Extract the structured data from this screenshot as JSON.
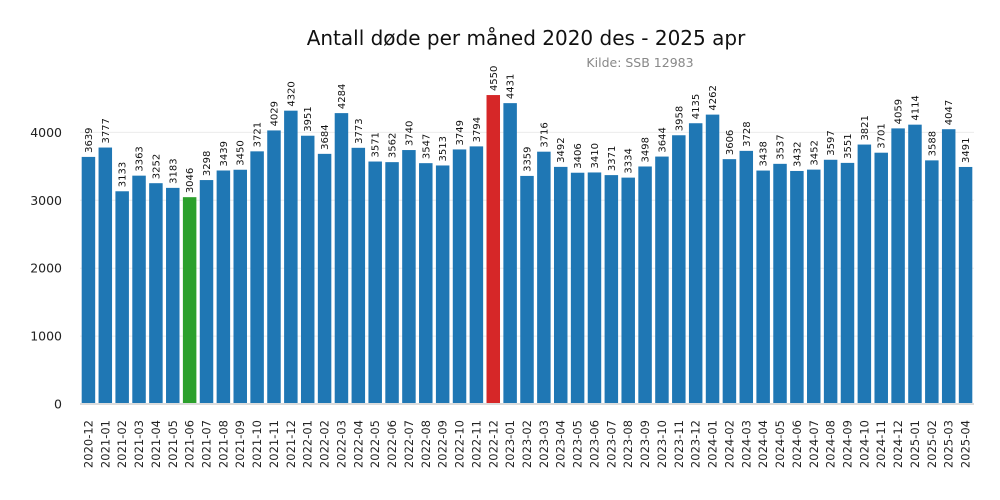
{
  "chart_data": {
    "type": "bar",
    "title": "Antall døde per måned 2020 des - 2025 apr",
    "subtitle": "Kilde: SSB 12983",
    "xlabel": "",
    "ylabel": "",
    "ylim": [
      0,
      4900
    ],
    "yticks": [
      0,
      1000,
      2000,
      3000,
      4000
    ],
    "grid": "horizontal",
    "default_color": "#1f77b4",
    "highlight": {
      "2021-06": "#2ca02c",
      "2022-12": "#d62728"
    },
    "categories": [
      "2020-12",
      "2021-01",
      "2021-02",
      "2021-03",
      "2021-04",
      "2021-05",
      "2021-06",
      "2021-07",
      "2021-08",
      "2021-09",
      "2021-10",
      "2021-11",
      "2021-12",
      "2022-01",
      "2022-02",
      "2022-03",
      "2022-04",
      "2022-05",
      "2022-06",
      "2022-07",
      "2022-08",
      "2022-09",
      "2022-10",
      "2022-11",
      "2022-12",
      "2023-01",
      "2023-02",
      "2023-03",
      "2023-04",
      "2023-05",
      "2023-06",
      "2023-07",
      "2023-08",
      "2023-09",
      "2023-10",
      "2023-11",
      "2023-12",
      "2024-01",
      "2024-02",
      "2024-03",
      "2024-04",
      "2024-05",
      "2024-06",
      "2024-07",
      "2024-08",
      "2024-09",
      "2024-10",
      "2024-11",
      "2024-12",
      "2025-01",
      "2025-02",
      "2025-03",
      "2025-04"
    ],
    "values": [
      3639,
      3777,
      3133,
      3363,
      3252,
      3183,
      3046,
      3298,
      3439,
      3450,
      3721,
      4029,
      4320,
      3951,
      3684,
      4284,
      3773,
      3571,
      3562,
      3740,
      3547,
      3513,
      3749,
      3794,
      4550,
      4431,
      3359,
      3716,
      3492,
      3406,
      3410,
      3371,
      3334,
      3498,
      3644,
      3958,
      4135,
      4262,
      3606,
      3728,
      3438,
      3537,
      3432,
      3452,
      3597,
      3551,
      3821,
      3701,
      4059,
      4114,
      3588,
      4047,
      3491
    ]
  }
}
